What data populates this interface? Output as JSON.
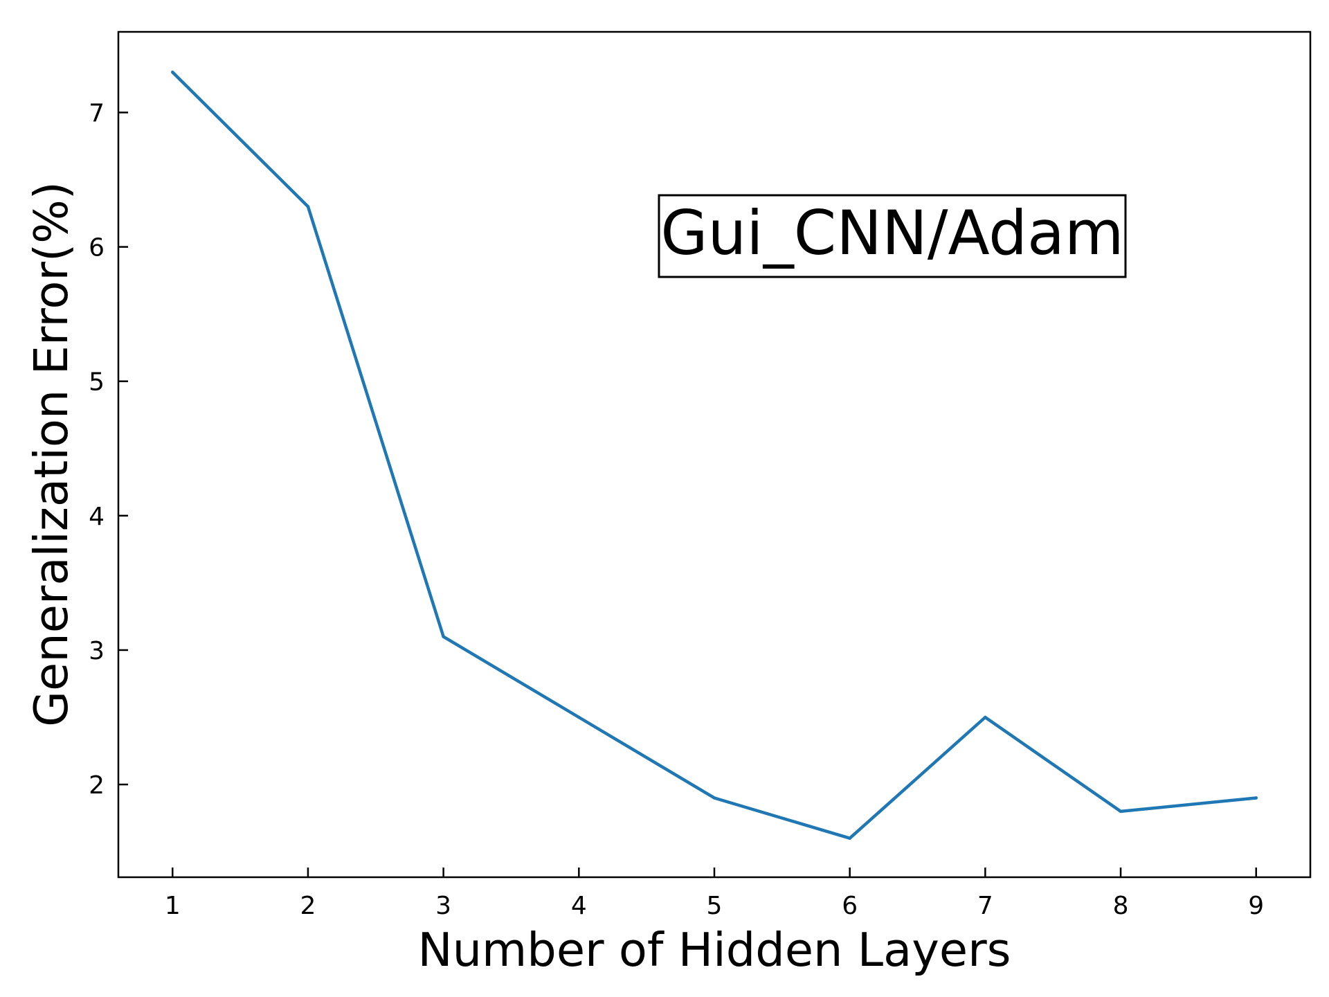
{
  "chart_data": {
    "type": "line",
    "xlabel": "Number of Hidden Layers",
    "ylabel": "Generalization Error(%)",
    "annotation": "Gui_CNN/Adam",
    "xlim": [
      0.6,
      9.4
    ],
    "ylim": [
      1.31,
      7.6
    ],
    "xticks": [
      1,
      2,
      3,
      4,
      5,
      6,
      7,
      8,
      9
    ],
    "yticks": [
      2,
      3,
      4,
      5,
      6,
      7
    ],
    "grid": false,
    "series": [
      {
        "color": "#1f77b4",
        "x": [
          1,
          2,
          3,
          4,
          5,
          6,
          7,
          8,
          9
        ],
        "y": [
          7.3,
          6.3,
          3.1,
          2.5,
          1.9,
          1.6,
          2.5,
          1.8,
          1.9
        ]
      }
    ]
  }
}
